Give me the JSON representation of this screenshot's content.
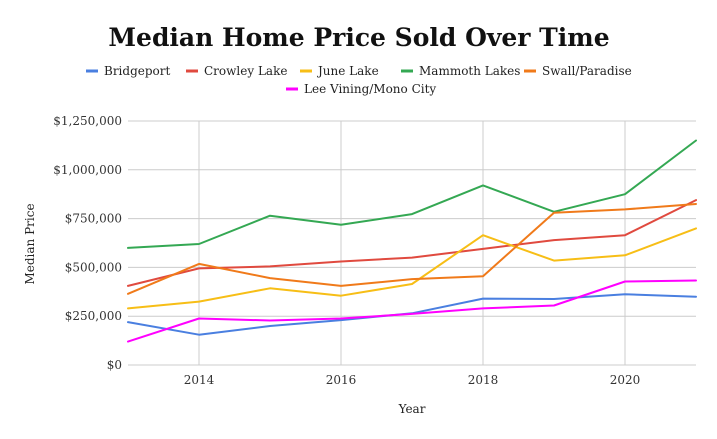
{
  "chart_data": {
    "type": "line",
    "title": "Median Home Price Sold Over Time",
    "xlabel": "Year",
    "ylabel": "Median Price",
    "xlim": [
      2013,
      2021
    ],
    "ylim": [
      0,
      1250000
    ],
    "x_ticks": [
      2014,
      2016,
      2018,
      2020
    ],
    "y_ticks": [
      0,
      250000,
      500000,
      750000,
      1000000,
      1250000
    ],
    "y_tick_labels": [
      "$0",
      "$250,000",
      "$500,000",
      "$750,000",
      "$1,000,000",
      "$1,250,000"
    ],
    "x": [
      2013,
      2014,
      2015,
      2016,
      2017,
      2018,
      2019,
      2020,
      2021
    ],
    "grid": "vertical-and-horizontal",
    "legend_position": "top",
    "series": [
      {
        "name": "Bridgeport",
        "color": "#4a7fe0",
        "values": [
          220000,
          155000,
          200000,
          230000,
          265000,
          340000,
          338000,
          362000,
          350000
        ]
      },
      {
        "name": "Crowley Lake",
        "color": "#e04a3f",
        "values": [
          405000,
          495000,
          505000,
          530000,
          550000,
          595000,
          640000,
          665000,
          845000
        ]
      },
      {
        "name": "June Lake",
        "color": "#f7be16",
        "values": [
          290000,
          325000,
          393000,
          355000,
          415000,
          665000,
          535000,
          562000,
          700000
        ]
      },
      {
        "name": "Mammoth Lakes",
        "color": "#34a853",
        "values": [
          600000,
          620000,
          765000,
          718000,
          773000,
          920000,
          785000,
          875000,
          1150000
        ]
      },
      {
        "name": "Swall/Paradise",
        "color": "#f07a1a",
        "values": [
          365000,
          518000,
          445000,
          405000,
          440000,
          455000,
          780000,
          797000,
          825000
        ]
      },
      {
        "name": "Lee Vining/Mono City",
        "color": "#ff00ff",
        "values": [
          120000,
          238000,
          228000,
          238000,
          262000,
          290000,
          305000,
          428000,
          433000
        ]
      }
    ]
  }
}
